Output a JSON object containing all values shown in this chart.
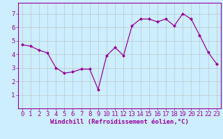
{
  "x_data": [
    0,
    1,
    2,
    3,
    4,
    5,
    6,
    7,
    8,
    9,
    10,
    11,
    12,
    13,
    14,
    15,
    16,
    17,
    18,
    19,
    20,
    21,
    22,
    23
  ],
  "y_data": [
    4.7,
    4.6,
    4.3,
    4.1,
    3.0,
    2.6,
    2.7,
    2.9,
    2.9,
    1.4,
    3.9,
    4.5,
    3.9,
    6.1,
    6.6,
    6.6,
    6.4,
    6.6,
    6.1,
    7.0,
    6.6,
    5.4,
    4.15,
    3.3
  ],
  "xlabel": "Windchill (Refroidissement éolien,°C)",
  "line_color": "#990099",
  "marker_color": "#990099",
  "bg_color": "#cceeff",
  "grid_color": "#bbbbbb",
  "ylim": [
    0,
    7.8
  ],
  "xlim": [
    -0.5,
    23.5
  ],
  "yticks": [
    1,
    2,
    3,
    4,
    5,
    6,
    7
  ],
  "xticks": [
    0,
    1,
    2,
    3,
    4,
    5,
    6,
    7,
    8,
    9,
    10,
    11,
    12,
    13,
    14,
    15,
    16,
    17,
    18,
    19,
    20,
    21,
    22,
    23
  ],
  "xlabel_fontsize": 6.5,
  "tick_fontsize": 6.5
}
